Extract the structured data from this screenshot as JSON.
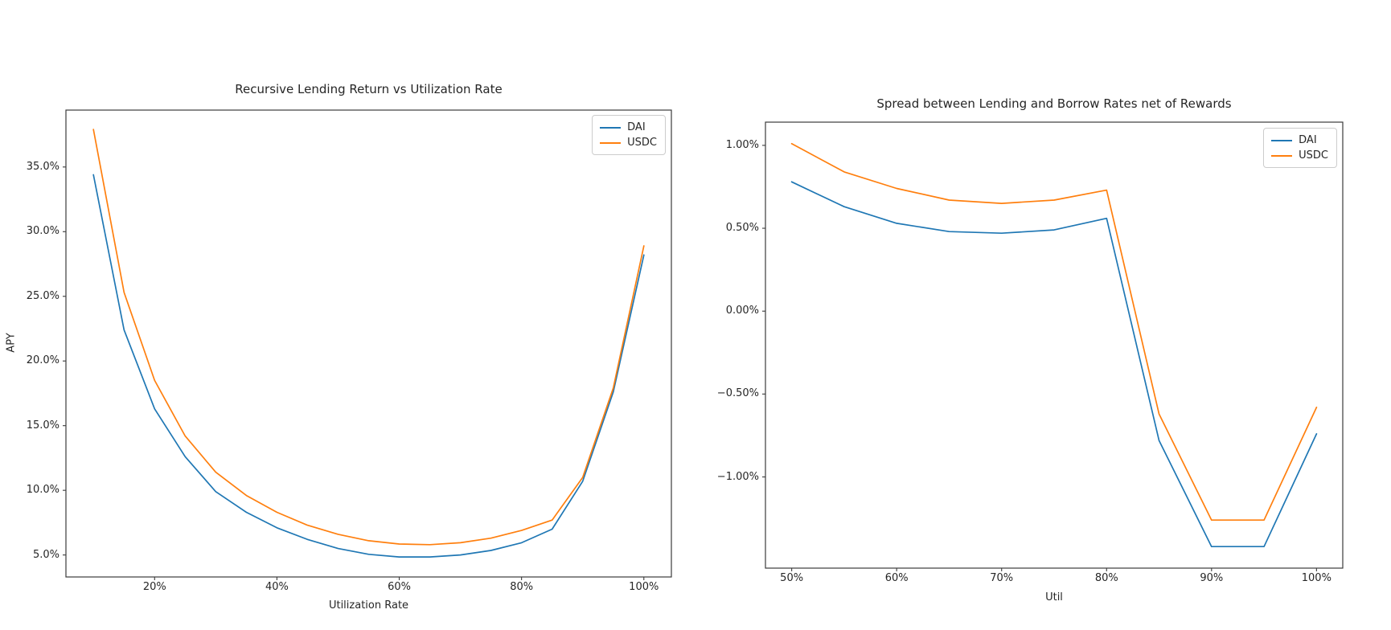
{
  "figure": {
    "background": "#ffffff"
  },
  "chart_data": {
    "charts": [
      {
        "id": "recursive-lending",
        "type": "line",
        "title": "Recursive Lending Return vs Utilization Rate",
        "xlabel": "Utilization Rate",
        "ylabel": "APY",
        "legend_position": "upper right",
        "grid": false,
        "xlim": [
          5.5,
          104.5
        ],
        "ylim": [
          3.3,
          39.4
        ],
        "x_ticks": [
          {
            "value": 20,
            "label": "20%"
          },
          {
            "value": 40,
            "label": "40%"
          },
          {
            "value": 60,
            "label": "60%"
          },
          {
            "value": 80,
            "label": "80%"
          },
          {
            "value": 100,
            "label": "100%"
          }
        ],
        "y_ticks": [
          {
            "value": 35,
            "label": "35.0%"
          },
          {
            "value": 30,
            "label": "30.0%"
          },
          {
            "value": 25,
            "label": "25.0%"
          },
          {
            "value": 20,
            "label": "20.0%"
          },
          {
            "value": 15,
            "label": "15.0%"
          },
          {
            "value": 10,
            "label": "10.0%"
          },
          {
            "value": 5,
            "label": "5.0%"
          }
        ],
        "x": [
          10,
          15,
          20,
          25,
          30,
          35,
          40,
          45,
          50,
          55,
          60,
          65,
          70,
          75,
          80,
          85,
          90,
          95,
          100
        ],
        "series": [
          {
            "name": "DAI",
            "color": "#1f77b4",
            "values": [
              34.4,
              22.4,
              16.3,
              12.6,
              9.9,
              8.3,
              7.1,
              6.2,
              5.5,
              5.05,
              4.85,
              4.85,
              5.0,
              5.35,
              5.95,
              7.0,
              10.7,
              17.6,
              28.2
            ]
          },
          {
            "name": "USDC",
            "color": "#ff7f0e",
            "values": [
              37.9,
              25.3,
              18.5,
              14.2,
              11.4,
              9.6,
              8.3,
              7.3,
              6.6,
              6.1,
              5.85,
              5.8,
              5.95,
              6.3,
              6.9,
              7.7,
              11.0,
              17.9,
              28.9
            ]
          }
        ]
      },
      {
        "id": "spread",
        "type": "line",
        "title": "Spread between Lending and Borrow Rates net of Rewards",
        "xlabel": "Util",
        "ylabel": "",
        "legend_position": "upper right",
        "grid": false,
        "xlim": [
          47.5,
          102.5
        ],
        "ylim": [
          -1.55,
          1.14
        ],
        "x_ticks": [
          {
            "value": 50,
            "label": "50%"
          },
          {
            "value": 60,
            "label": "60%"
          },
          {
            "value": 70,
            "label": "70%"
          },
          {
            "value": 80,
            "label": "80%"
          },
          {
            "value": 90,
            "label": "90%"
          },
          {
            "value": 100,
            "label": "100%"
          }
        ],
        "y_ticks": [
          {
            "value": 1.0,
            "label": "1.00%"
          },
          {
            "value": 0.5,
            "label": "0.50%"
          },
          {
            "value": 0.0,
            "label": "0.00%"
          },
          {
            "value": -0.5,
            "label": "−0.50%"
          },
          {
            "value": -1.0,
            "label": "−1.00%"
          }
        ],
        "x": [
          50,
          55,
          60,
          65,
          70,
          75,
          80,
          85,
          90,
          95,
          100
        ],
        "series": [
          {
            "name": "DAI",
            "color": "#1f77b4",
            "values": [
              0.78,
              0.63,
              0.53,
              0.48,
              0.47,
              0.49,
              0.56,
              -0.78,
              -1.42,
              -1.42,
              -0.74
            ]
          },
          {
            "name": "USDC",
            "color": "#ff7f0e",
            "values": [
              1.01,
              0.84,
              0.74,
              0.67,
              0.65,
              0.67,
              0.73,
              -0.62,
              -1.26,
              -1.26,
              -0.58
            ]
          }
        ]
      }
    ]
  }
}
